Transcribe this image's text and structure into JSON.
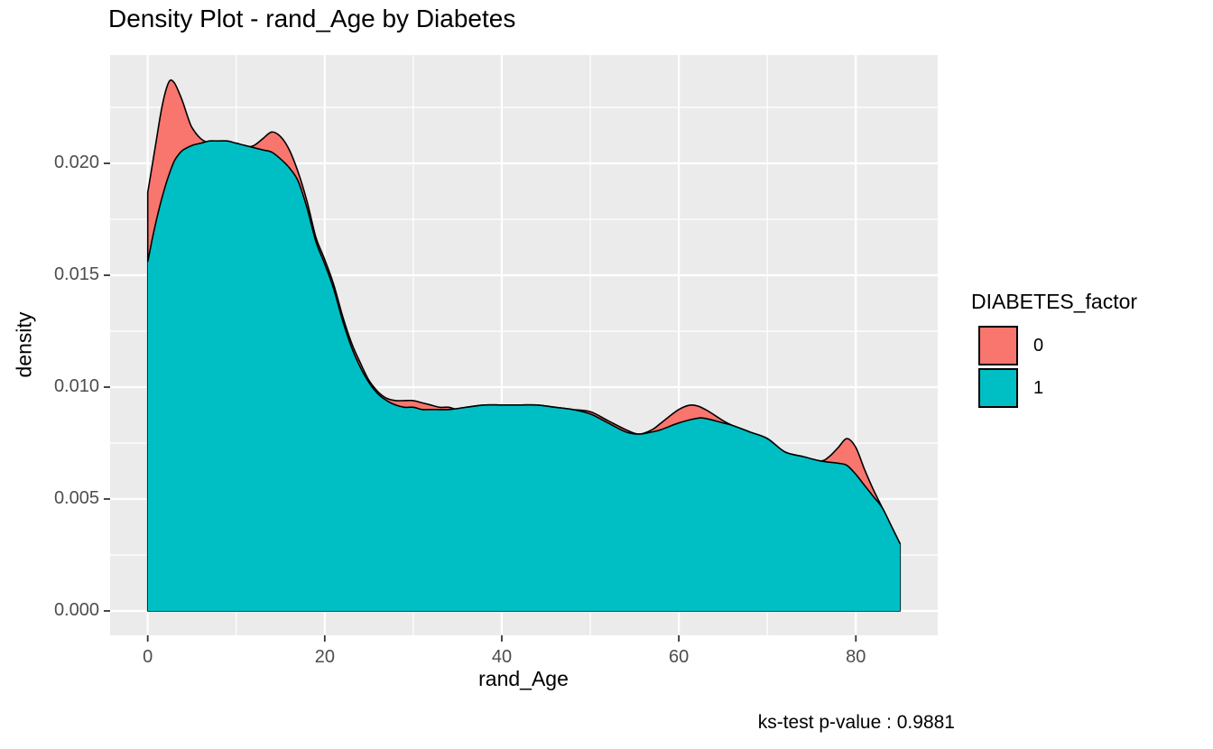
{
  "title": "Density Plot - rand_Age by Diabetes",
  "caption": "ks-test p-value : 0.9881",
  "legend": {
    "title": "DIABETES_factor",
    "items": [
      {
        "label": "0",
        "color": "#F8766D"
      },
      {
        "label": "1",
        "color": "#00BFC4"
      }
    ]
  },
  "chart_data": {
    "type": "area",
    "title": "Density Plot - rand_Age by Diabetes",
    "xlabel": "rand_Age",
    "ylabel": "density",
    "x_tick_labels": [
      "0",
      "20",
      "40",
      "60",
      "80"
    ],
    "x_ticks": [
      0,
      20,
      40,
      60,
      80
    ],
    "x_minor": [
      10,
      30,
      50,
      70
    ],
    "y_tick_labels": [
      "0.000",
      "0.005",
      "0.010",
      "0.015",
      "0.020"
    ],
    "y_ticks": [
      0,
      0.005,
      0.01,
      0.015,
      0.02
    ],
    "y_minor": [
      0.0025,
      0.0075,
      0.0125,
      0.0175,
      0.0225
    ],
    "xlim": [
      -4.25,
      89.25
    ],
    "ylim": [
      -0.00109,
      0.02484
    ],
    "grid": true,
    "legend_position": "right",
    "panel_background": "#EBEBEB",
    "grid_color": "#FFFFFF",
    "tick_color": "#333333",
    "outline_color": "#000000",
    "series": [
      {
        "name": "0",
        "color": "#F8766D",
        "points": [
          [
            0,
            0.0187
          ],
          [
            0.5,
            0.0199
          ],
          [
            1,
            0.0211
          ],
          [
            1.5,
            0.0223
          ],
          [
            2,
            0.0232
          ],
          [
            2.5,
            0.0237
          ],
          [
            3,
            0.0236
          ],
          [
            3.5,
            0.0232
          ],
          [
            4,
            0.0227
          ],
          [
            4.5,
            0.0221
          ],
          [
            5,
            0.0216
          ],
          [
            6,
            0.0211
          ],
          [
            7,
            0.0209
          ],
          [
            8,
            0.0208
          ],
          [
            9,
            0.0207
          ],
          [
            10,
            0.0207
          ],
          [
            11,
            0.0207
          ],
          [
            12,
            0.0208
          ],
          [
            13,
            0.0211
          ],
          [
            14,
            0.0214
          ],
          [
            15,
            0.0212
          ],
          [
            16,
            0.0206
          ],
          [
            17,
            0.0196
          ],
          [
            18,
            0.0183
          ],
          [
            19,
            0.0167
          ],
          [
            20,
            0.0157
          ],
          [
            21,
            0.0146
          ],
          [
            22,
            0.0132
          ],
          [
            23,
            0.012
          ],
          [
            24,
            0.0111
          ],
          [
            25,
            0.0103
          ],
          [
            26,
            0.0098
          ],
          [
            27,
            0.0095
          ],
          [
            28,
            0.0094
          ],
          [
            29,
            0.0094
          ],
          [
            30,
            0.0094
          ],
          [
            31,
            0.0093
          ],
          [
            32,
            0.0092
          ],
          [
            33,
            0.0091
          ],
          [
            34,
            0.0091
          ],
          [
            35,
            0.009
          ],
          [
            36,
            0.0091
          ],
          [
            38,
            0.0092
          ],
          [
            40,
            0.0092
          ],
          [
            42,
            0.0092
          ],
          [
            44,
            0.0092
          ],
          [
            46,
            0.0091
          ],
          [
            48,
            0.009
          ],
          [
            50,
            0.0089
          ],
          [
            52,
            0.0085
          ],
          [
            54,
            0.0081
          ],
          [
            55.5,
            0.0079
          ],
          [
            57,
            0.0081
          ],
          [
            58,
            0.0084
          ],
          [
            60,
            0.009
          ],
          [
            61.5,
            0.0092
          ],
          [
            63,
            0.009
          ],
          [
            65,
            0.0085
          ],
          [
            66,
            0.0083
          ],
          [
            68,
            0.008
          ],
          [
            70,
            0.0077
          ],
          [
            72,
            0.0071
          ],
          [
            74,
            0.0069
          ],
          [
            76,
            0.0067
          ],
          [
            77,
            0.0069
          ],
          [
            78,
            0.0073
          ],
          [
            79,
            0.0077
          ],
          [
            80,
            0.0073
          ],
          [
            81,
            0.0063
          ],
          [
            82,
            0.0054
          ],
          [
            83,
            0.0046
          ],
          [
            84,
            0.0038
          ],
          [
            85,
            0.003
          ]
        ]
      },
      {
        "name": "1",
        "color": "#00BFC4",
        "points": [
          [
            0,
            0.0156
          ],
          [
            0.5,
            0.0166
          ],
          [
            1,
            0.0175
          ],
          [
            1.5,
            0.0183
          ],
          [
            2,
            0.019
          ],
          [
            2.5,
            0.0196
          ],
          [
            3,
            0.0201
          ],
          [
            3.5,
            0.0204
          ],
          [
            4,
            0.0206
          ],
          [
            5,
            0.0208
          ],
          [
            6,
            0.0209
          ],
          [
            7,
            0.021
          ],
          [
            8,
            0.021
          ],
          [
            9,
            0.021
          ],
          [
            10,
            0.0209
          ],
          [
            11,
            0.0208
          ],
          [
            12,
            0.0207
          ],
          [
            13,
            0.0206
          ],
          [
            14,
            0.0205
          ],
          [
            15,
            0.0202
          ],
          [
            16,
            0.0198
          ],
          [
            17,
            0.0192
          ],
          [
            18,
            0.018
          ],
          [
            19,
            0.0165
          ],
          [
            20,
            0.0155
          ],
          [
            21,
            0.0144
          ],
          [
            22,
            0.013
          ],
          [
            23,
            0.0118
          ],
          [
            24,
            0.0109
          ],
          [
            25,
            0.0102
          ],
          [
            26,
            0.0097
          ],
          [
            27,
            0.0094
          ],
          [
            28,
            0.0092
          ],
          [
            29,
            0.0091
          ],
          [
            30,
            0.0091
          ],
          [
            31,
            0.009
          ],
          [
            32,
            0.009
          ],
          [
            34,
            0.009
          ],
          [
            36,
            0.0091
          ],
          [
            38,
            0.0092
          ],
          [
            40,
            0.0092
          ],
          [
            42,
            0.0092
          ],
          [
            44,
            0.0092
          ],
          [
            46,
            0.0091
          ],
          [
            48,
            0.009
          ],
          [
            50,
            0.0088
          ],
          [
            52,
            0.0084
          ],
          [
            54,
            0.008
          ],
          [
            55.5,
            0.0079
          ],
          [
            57,
            0.008
          ],
          [
            58,
            0.0081
          ],
          [
            60,
            0.0084
          ],
          [
            62,
            0.0086
          ],
          [
            63,
            0.0086
          ],
          [
            65,
            0.0084
          ],
          [
            66,
            0.0083
          ],
          [
            68,
            0.008
          ],
          [
            70,
            0.0077
          ],
          [
            72,
            0.0071
          ],
          [
            74,
            0.0069
          ],
          [
            76,
            0.0067
          ],
          [
            78,
            0.0066
          ],
          [
            79,
            0.0065
          ],
          [
            80,
            0.0061
          ],
          [
            81,
            0.0056
          ],
          [
            82,
            0.0051
          ],
          [
            83,
            0.0046
          ],
          [
            84,
            0.0038
          ],
          [
            85,
            0.003
          ]
        ]
      }
    ]
  }
}
